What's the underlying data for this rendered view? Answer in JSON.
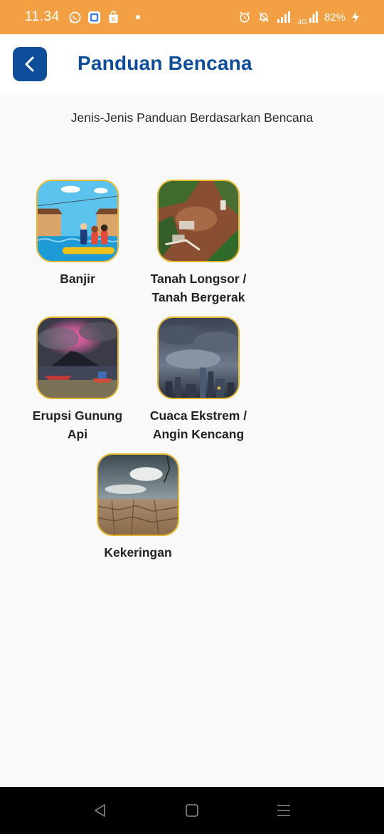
{
  "status_bar": {
    "time": "11.34",
    "network": "4G",
    "battery": "82%"
  },
  "header": {
    "title": "Panduan Bencana"
  },
  "subtitle": "Jenis-Jenis Panduan Berdasarkan Bencana",
  "disasters": [
    {
      "label_line1": "Banjir",
      "label_line2": ""
    },
    {
      "label_line1": "Tanah Longsor /",
      "label_line2": "Tanah Bergerak"
    },
    {
      "label_line1": "Erupsi Gunung",
      "label_line2": "Api"
    },
    {
      "label_line1": "Cuaca Ekstrem /",
      "label_line2": "Angin Kencang"
    },
    {
      "label_line1": "Kekeringan",
      "label_line2": ""
    }
  ],
  "colors": {
    "status_bar": "#f3a044",
    "primary": "#0d4d9a",
    "thumb_border": "#e7b52c"
  }
}
